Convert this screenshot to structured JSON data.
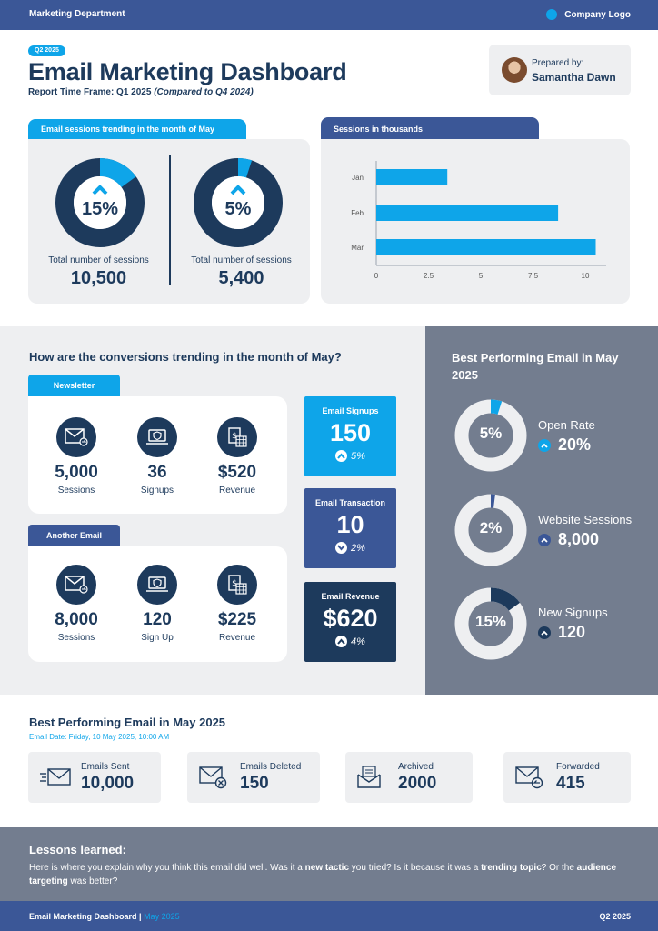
{
  "topbar": {
    "department": "Marketing Department",
    "logo_label": "Company Logo"
  },
  "header": {
    "badge": "Q2 2025",
    "title": "Email Marketing Dashboard",
    "timeframe_prefix": "Report Time Frame: Q1 2025 ",
    "timeframe_compare": "(Compared to Q4 2024)",
    "prepared_label": "Prepared by:",
    "prepared_name": "Samantha Dawn"
  },
  "sessions_trend": {
    "tab": "Email sessions trending in the month of May",
    "items": [
      {
        "percent": "15%",
        "fraction": 0.15,
        "total_label": "Total number of sessions",
        "total_value": "10,500"
      },
      {
        "percent": "5%",
        "fraction": 0.05,
        "total_label": "Total number of sessions",
        "total_value": "5,400"
      }
    ]
  },
  "chart_data": {
    "type": "bar",
    "orientation": "horizontal",
    "title": "Sessions in thousands",
    "categories": [
      "Jan",
      "Feb",
      "Mar"
    ],
    "values": [
      3.4,
      8.7,
      10.5
    ],
    "xlim": [
      0,
      11
    ],
    "ticks": [
      "0",
      "2.5",
      "5",
      "7.5",
      "10"
    ],
    "tick_values": [
      0,
      2.5,
      5,
      7.5,
      10
    ],
    "grid": false,
    "colors": {
      "bar": "#0ea5e9"
    }
  },
  "conversions": {
    "question": "How are the conversions trending in the month of May?",
    "groups": [
      {
        "label": "Newsletter",
        "stats": [
          {
            "icon": "envelope-icon",
            "value": "5,000",
            "label": "Sessions"
          },
          {
            "icon": "laptop-shield-icon",
            "value": "36",
            "label": "Signups"
          },
          {
            "icon": "revenue-sheet-icon",
            "value": "$520",
            "label": "Revenue"
          }
        ]
      },
      {
        "label": "Another Email",
        "stats": [
          {
            "icon": "envelope-icon",
            "value": "8,000",
            "label": "Sessions"
          },
          {
            "icon": "laptop-shield-icon",
            "value": "120",
            "label": "Sign Up"
          },
          {
            "icon": "revenue-sheet-icon",
            "value": "$225",
            "label": "Revenue"
          }
        ]
      }
    ],
    "kpis": [
      {
        "title": "Email Signups",
        "value": "150",
        "change": "5%",
        "direction": "up",
        "color": "#0ea5e9"
      },
      {
        "title": "Email Transaction",
        "value": "10",
        "change": "2%",
        "direction": "down",
        "color": "#3b5797"
      },
      {
        "title": "Email Revenue",
        "value": "$620",
        "change": "4%",
        "direction": "up",
        "color": "#1d3a5c"
      }
    ]
  },
  "best_email_panel": {
    "title": "Best Performing Email in May 2025",
    "items": [
      {
        "percent": "5%",
        "fraction": 0.05,
        "label": "Open Rate",
        "value": "20%",
        "color": "#0ea5e9"
      },
      {
        "percent": "2%",
        "fraction": 0.02,
        "label": "Website Sessions",
        "value": "8,000",
        "color": "#3b5797"
      },
      {
        "percent": "15%",
        "fraction": 0.15,
        "label": "New Signups",
        "value": "120",
        "color": "#1d3a5c"
      }
    ]
  },
  "best_email_stats": {
    "title": "Best Performing Email in May 2025",
    "date": "Email Date:  Friday, 10 May 2025, 10:00 AM",
    "items": [
      {
        "icon": "fast-envelope-icon",
        "label": "Emails Sent",
        "value": "10,000"
      },
      {
        "icon": "envelope-delete-icon",
        "label": "Emails Deleted",
        "value": "150"
      },
      {
        "icon": "archive-envelope-icon",
        "label": "Archived",
        "value": "2000"
      },
      {
        "icon": "forward-envelope-icon",
        "label": "Forwarded",
        "value": "415"
      }
    ]
  },
  "lessons": {
    "title": "Lessons learned:",
    "p1": "Here is where you explain why you think this email did well.  Was it a ",
    "b1": "new tactic",
    "p2": " you tried? Is it because it was a ",
    "b2": "trending topic",
    "p3": "? Or the ",
    "b3": "audience targeting",
    "p4": " was better?"
  },
  "footer": {
    "title": "Email Marketing Dashboard",
    "separator": " | ",
    "month": "May 2025",
    "quarter": "Q2 2025"
  }
}
